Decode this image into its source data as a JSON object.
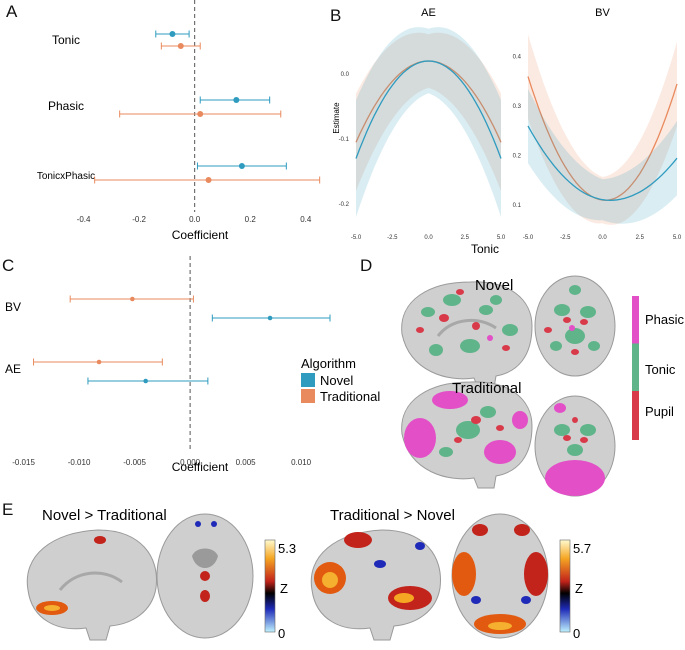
{
  "colors": {
    "novel": "#2e9bbf",
    "traditional": "#e98a5e",
    "ref_line": "#555555",
    "phasic": "#e24fc7",
    "tonic": "#5fb48a",
    "pupil": "#d93a4a",
    "brain": "#cfcfcf",
    "brain_dark": "#9a9a9a"
  },
  "panels": {
    "A": {
      "letter": "A",
      "xlabel": "Coefficient",
      "xlim": [
        -0.42,
        0.48
      ],
      "ticks": [
        -0.4,
        -0.2,
        0.0,
        0.2,
        0.4
      ],
      "tick_labels": [
        "-0.4",
        "-0.2",
        "0.0",
        "0.2",
        "0.4"
      ],
      "rows": [
        {
          "label": "Tonic",
          "novel": {
            "est": -0.08,
            "lo": -0.14,
            "hi": -0.02
          },
          "traditional": {
            "est": -0.05,
            "lo": -0.12,
            "hi": 0.02
          }
        },
        {
          "label": "Phasic",
          "novel": {
            "est": 0.15,
            "lo": 0.02,
            "hi": 0.27
          },
          "traditional": {
            "est": 0.02,
            "lo": -0.27,
            "hi": 0.31
          }
        },
        {
          "label": "TonicxPhasic",
          "novel": {
            "est": 0.17,
            "lo": 0.01,
            "hi": 0.33
          },
          "traditional": {
            "est": 0.05,
            "lo": -0.36,
            "hi": 0.45
          }
        }
      ]
    },
    "B": {
      "letter": "B",
      "xlabel": "Tonic",
      "ylabel": "Estimate",
      "x_ticks": [
        -5.0,
        -2.5,
        0.0,
        2.5,
        5.0
      ],
      "x_tick_labels": [
        "-5.0",
        "-2.5",
        "0.0",
        "2.5",
        "5.0"
      ],
      "subplots": [
        {
          "title": "AE",
          "ylim": [
            -0.24,
            0.08
          ],
          "y_ticks": [
            0.0,
            -0.1,
            -0.2
          ],
          "y_tick_labels": [
            "0.0",
            "-0.1",
            "-0.2"
          ],
          "novel": {
            "vertex_x": 0,
            "vertex_y": 0.02,
            "edge_y": -0.13,
            "band": 0.09
          },
          "traditional": {
            "vertex_x": 0,
            "vertex_y": 0.02,
            "edge_y": -0.105,
            "band": 0.075
          }
        },
        {
          "title": "BV",
          "ylim": [
            0.05,
            0.47
          ],
          "y_ticks": [
            0.4,
            0.3,
            0.2,
            0.1
          ],
          "y_tick_labels": [
            "0.4",
            "0.3",
            "0.2",
            "0.1"
          ],
          "novel": {
            "vertex_x": 0.5,
            "vertex_y": 0.11,
            "left_y": 0.26,
            "right_y": 0.195,
            "band": 0.075
          },
          "traditional": {
            "vertex_x": 0.2,
            "vertex_y": 0.11,
            "left_y": 0.36,
            "right_y": 0.345,
            "band": 0.085
          }
        }
      ]
    },
    "C": {
      "letter": "C",
      "xlabel": "Coefficient",
      "xlim": [
        -0.0155,
        0.0135
      ],
      "ticks": [
        -0.015,
        -0.01,
        -0.005,
        0.0,
        0.005,
        0.01
      ],
      "tick_labels": [
        "-0.015",
        "-0.010",
        "-0.005",
        "0.000",
        "0.005",
        "0.010"
      ],
      "rows": [
        {
          "label": "BV",
          "traditional": {
            "est": -0.0052,
            "lo": -0.0108,
            "hi": 0.0003
          },
          "novel": {
            "est": 0.0072,
            "lo": 0.002,
            "hi": 0.0126
          }
        },
        {
          "label": "AE",
          "traditional": {
            "est": -0.0082,
            "lo": -0.0141,
            "hi": -0.0025
          },
          "novel": {
            "est": -0.004,
            "lo": -0.0092,
            "hi": 0.0016
          }
        }
      ],
      "legend": {
        "title": "Algorithm",
        "items": [
          "Novel",
          "Traditional"
        ]
      }
    },
    "D": {
      "letter": "D",
      "labels": [
        "Novel",
        "Traditional"
      ],
      "legend": [
        "Phasic",
        "Tonic",
        "Pupil"
      ]
    },
    "E": {
      "letter": "E",
      "groups": [
        {
          "title": "Novel > Traditional",
          "colorbar_max": "5.3",
          "colorbar_min": "0",
          "colorbar_label": "Z"
        },
        {
          "title": "Traditional > Novel",
          "colorbar_max": "5.7",
          "colorbar_min": "0",
          "colorbar_label": "Z"
        }
      ]
    }
  }
}
